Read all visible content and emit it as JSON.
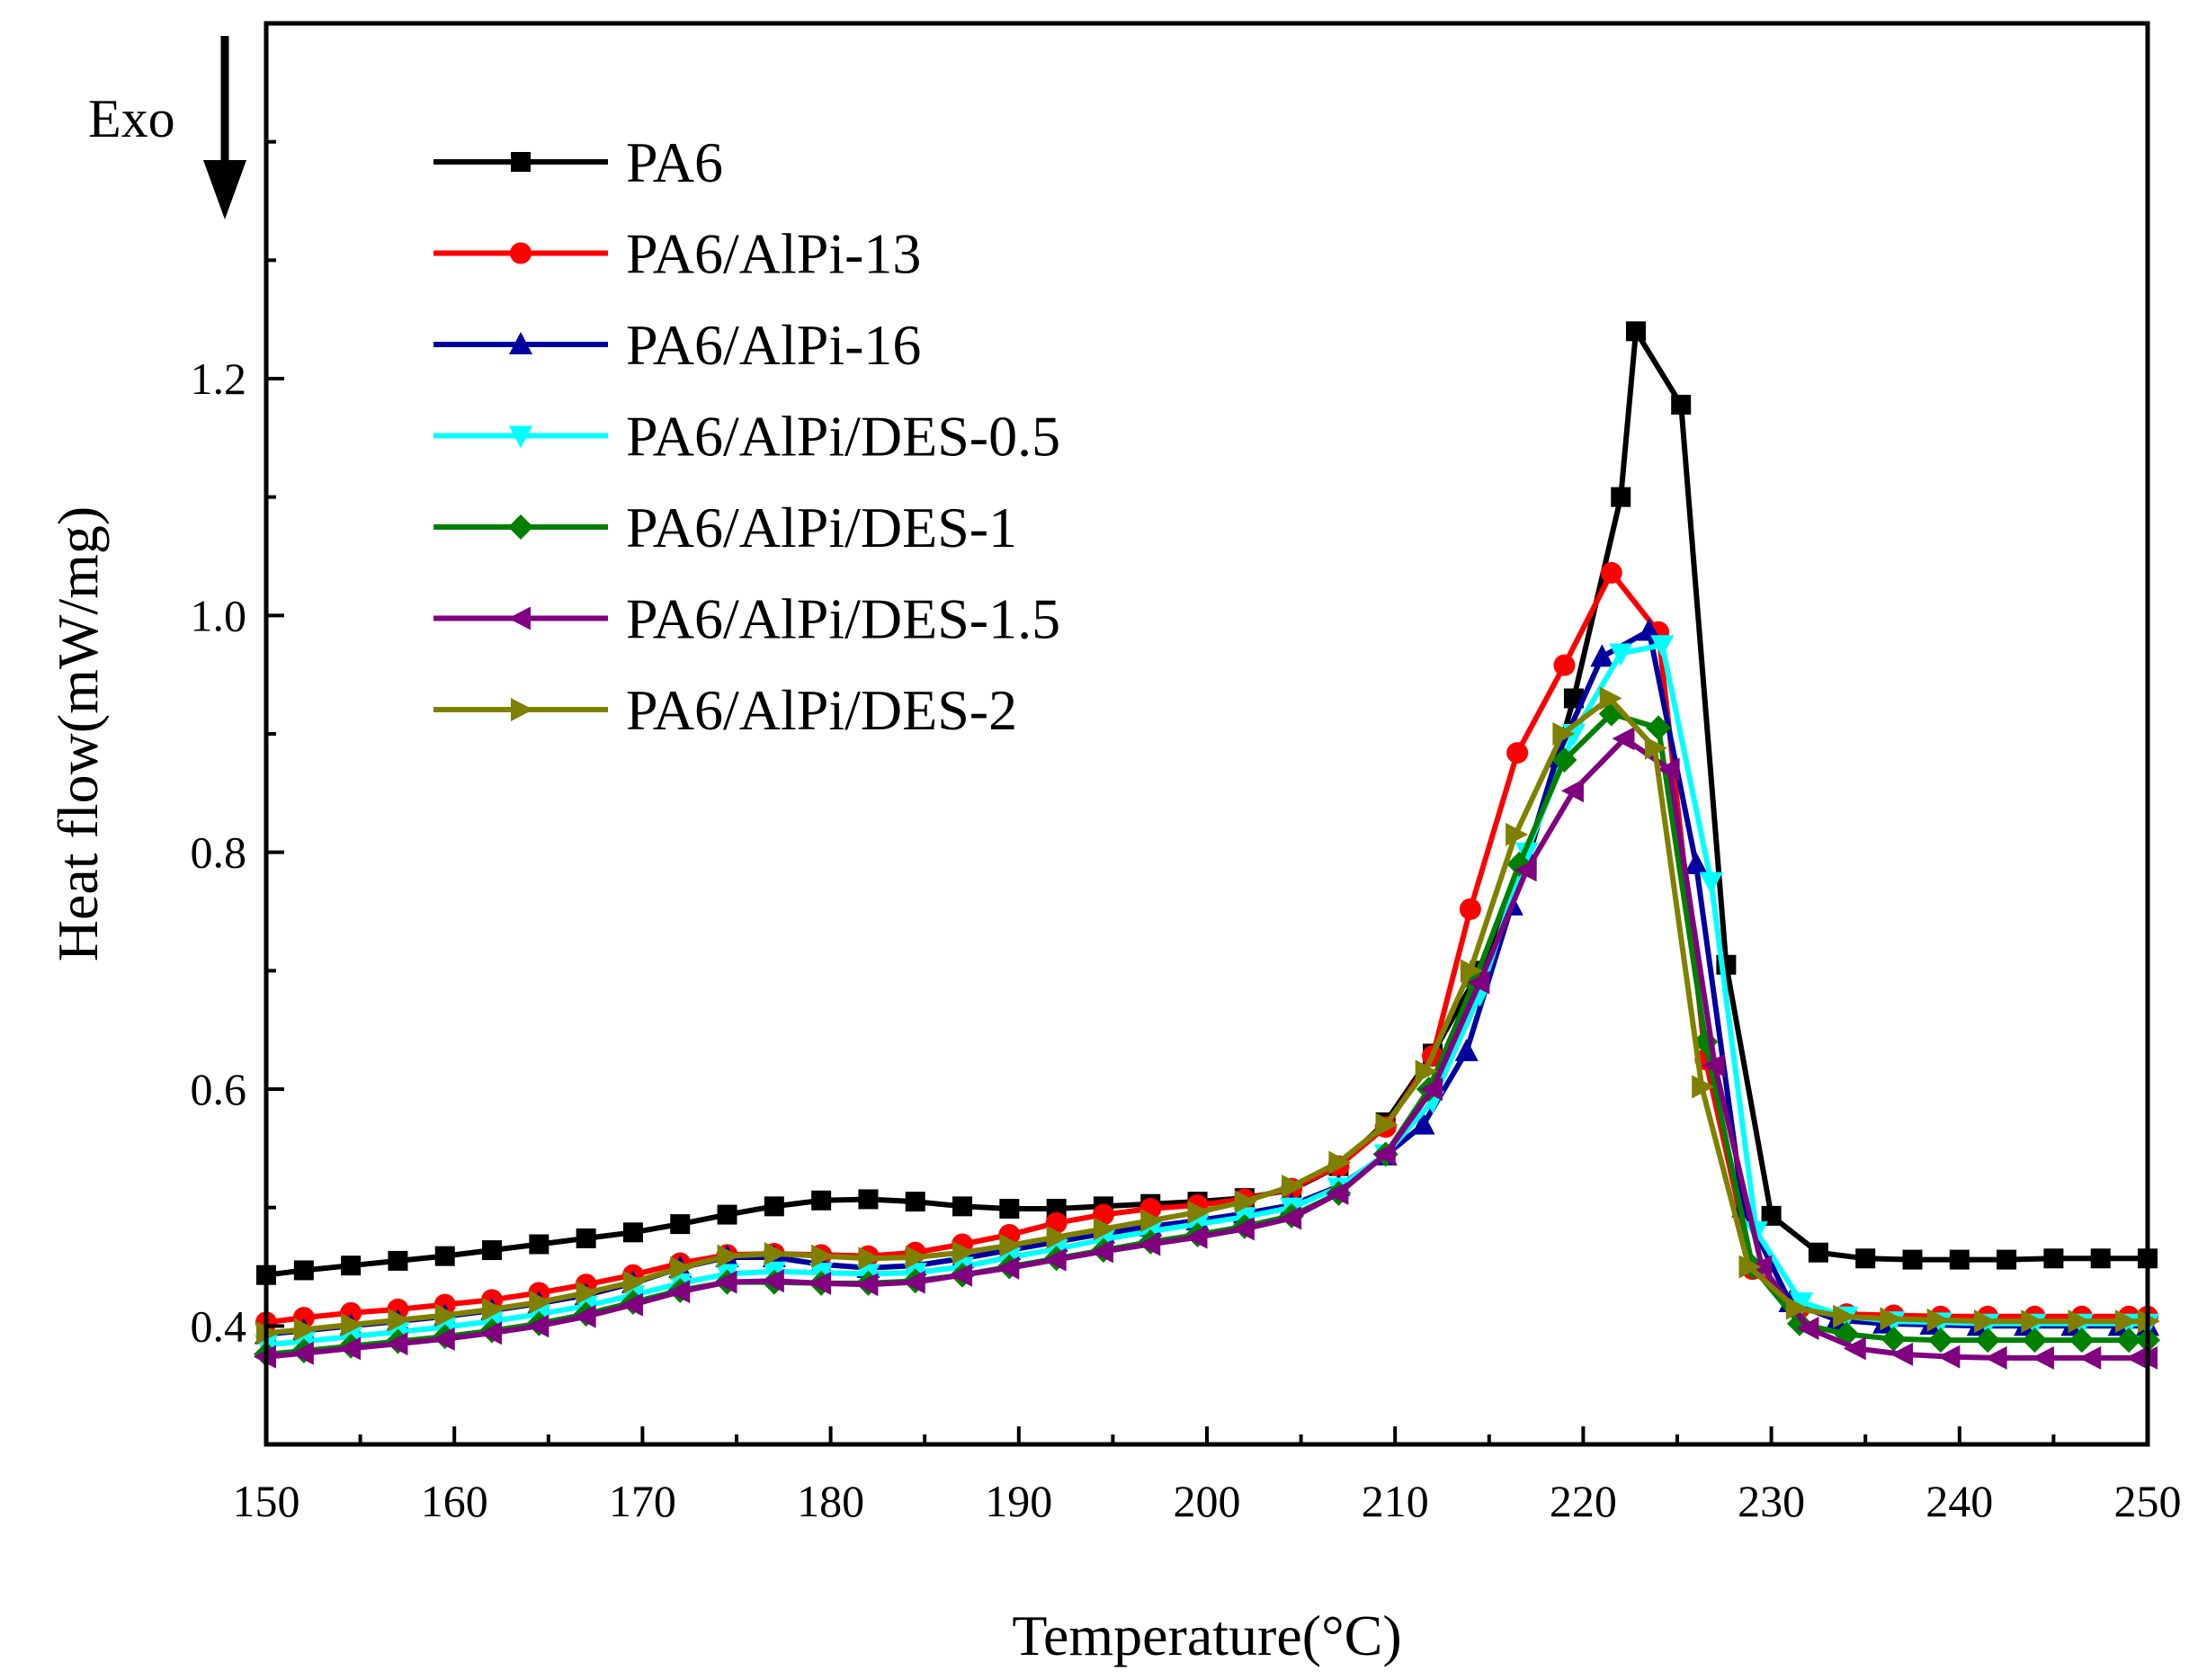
{
  "chart_data": {
    "type": "line",
    "title": "",
    "xlabel": "Temperature(°C)",
    "ylabel": "Heat flow(mW/mg)",
    "xlim": [
      150,
      250
    ],
    "ylim": [
      0.3,
      1.5
    ],
    "xticks": [
      150,
      160,
      170,
      180,
      190,
      200,
      210,
      220,
      230,
      240,
      250
    ],
    "yticks": [
      0.4,
      0.6,
      0.8,
      1.0,
      1.2
    ],
    "ytick_labels": [
      "0.4",
      "0.6",
      "0.8",
      "1.0",
      "1.2"
    ],
    "annotation": "Exo",
    "legend_position": "top-left",
    "x": [
      150.0,
      152.0,
      154.5,
      157.0,
      159.5,
      162.0,
      164.5,
      167.0,
      169.5,
      172.0,
      174.5,
      177.0,
      179.5,
      182.0,
      184.5,
      187.0,
      189.5,
      192.0,
      194.5,
      197.0,
      199.5,
      202.0,
      204.5,
      207.0,
      209.5,
      212.0,
      214.5,
      217.0,
      219.5,
      222.0,
      224.5,
      227.0,
      229.5,
      232.0,
      234.5,
      237.0,
      239.5,
      242.0,
      244.5,
      247.0,
      249.5
    ],
    "series": [
      {
        "name": "PA6",
        "color": "#000000",
        "marker": "square",
        "x": [
          150.0,
          152.0,
          154.5,
          157.0,
          159.5,
          162.0,
          164.5,
          167.0,
          169.5,
          172.0,
          174.5,
          177.0,
          179.5,
          182.0,
          184.5,
          187.0,
          189.5,
          192.0,
          194.5,
          197.0,
          199.5,
          202.0,
          204.5,
          207.0,
          209.5,
          212.0,
          214.5,
          217.0,
          219.5,
          222.0,
          222.8,
          225.2,
          227.6,
          230.0,
          232.5,
          235.0,
          237.5,
          240.0,
          242.5,
          245.0,
          247.5,
          250.0
        ],
        "values": [
          0.443,
          0.447,
          0.451,
          0.455,
          0.459,
          0.464,
          0.469,
          0.474,
          0.479,
          0.486,
          0.494,
          0.501,
          0.506,
          0.507,
          0.505,
          0.501,
          0.499,
          0.499,
          0.501,
          0.503,
          0.505,
          0.508,
          0.515,
          0.535,
          0.572,
          0.63,
          0.7,
          0.79,
          0.93,
          1.1,
          1.24,
          1.178,
          0.705,
          0.493,
          0.462,
          0.457,
          0.456,
          0.456,
          0.456,
          0.457,
          0.457,
          0.457
        ]
      },
      {
        "name": "PA6/AlPi-13",
        "color": "#ff0000",
        "marker": "circle",
        "x": [
          150.0,
          152.0,
          154.5,
          157.0,
          159.5,
          162.0,
          164.5,
          167.0,
          169.5,
          172.0,
          174.5,
          177.0,
          179.5,
          182.0,
          184.5,
          187.0,
          189.5,
          192.0,
          194.5,
          197.0,
          199.5,
          202.0,
          204.5,
          207.0,
          209.5,
          212.0,
          214.0,
          216.5,
          219.0,
          221.5,
          224.0,
          226.5,
          229.0,
          231.5,
          234.0,
          236.5,
          239.0,
          241.5,
          244.0,
          246.5,
          249.0,
          250.0
        ],
        "values": [
          0.403,
          0.407,
          0.411,
          0.414,
          0.418,
          0.422,
          0.428,
          0.435,
          0.443,
          0.453,
          0.46,
          0.461,
          0.46,
          0.459,
          0.462,
          0.469,
          0.477,
          0.487,
          0.494,
          0.499,
          0.502,
          0.507,
          0.516,
          0.535,
          0.568,
          0.628,
          0.752,
          0.884,
          0.958,
          1.036,
          0.986,
          0.625,
          0.448,
          0.415,
          0.41,
          0.409,
          0.408,
          0.408,
          0.408,
          0.408,
          0.408,
          0.408
        ]
      },
      {
        "name": "PA6/AlPi-16",
        "color": "#0000a0",
        "marker": "triangle-up",
        "x": [
          150.0,
          152.0,
          154.5,
          157.0,
          159.5,
          162.0,
          164.5,
          167.0,
          169.5,
          172.0,
          174.5,
          177.0,
          179.5,
          182.0,
          184.5,
          187.0,
          189.5,
          192.0,
          194.5,
          197.0,
          199.5,
          202.0,
          204.5,
          207.0,
          209.5,
          211.5,
          213.8,
          216.2,
          218.6,
          221.0,
          223.5,
          226.0,
          228.5,
          231.0,
          233.5,
          236.0,
          238.5,
          241.0,
          243.5,
          246.0,
          248.5,
          250.0
        ],
        "values": [
          0.393,
          0.396,
          0.4,
          0.404,
          0.408,
          0.413,
          0.419,
          0.426,
          0.436,
          0.449,
          0.458,
          0.458,
          0.452,
          0.449,
          0.451,
          0.457,
          0.464,
          0.471,
          0.478,
          0.484,
          0.489,
          0.495,
          0.502,
          0.518,
          0.544,
          0.57,
          0.632,
          0.755,
          0.88,
          0.965,
          0.987,
          0.79,
          0.5,
          0.42,
          0.405,
          0.402,
          0.401,
          0.4,
          0.4,
          0.4,
          0.4,
          0.4
        ]
      },
      {
        "name": "PA6/AlPi/DES-0.5",
        "color": "#00ffff",
        "marker": "triangle-down",
        "x": [
          150.0,
          152.0,
          154.5,
          157.0,
          159.5,
          162.0,
          164.5,
          167.0,
          169.5,
          172.0,
          174.5,
          177.0,
          179.5,
          182.0,
          184.5,
          187.0,
          189.5,
          192.0,
          194.5,
          197.0,
          199.5,
          202.0,
          204.5,
          207.0,
          209.5,
          212.0,
          214.5,
          217.0,
          219.5,
          222.0,
          224.2,
          226.8,
          229.2,
          231.6,
          234.0,
          236.5,
          239.0,
          241.5,
          244.0,
          246.5,
          249.0,
          250.0
        ],
        "values": [
          0.384,
          0.387,
          0.391,
          0.395,
          0.399,
          0.404,
          0.41,
          0.417,
          0.426,
          0.436,
          0.444,
          0.446,
          0.445,
          0.444,
          0.445,
          0.45,
          0.458,
          0.465,
          0.473,
          0.48,
          0.486,
          0.492,
          0.5,
          0.517,
          0.545,
          0.59,
          0.68,
          0.8,
          0.9,
          0.968,
          0.975,
          0.775,
          0.48,
          0.42,
          0.408,
          0.404,
          0.403,
          0.402,
          0.402,
          0.402,
          0.402,
          0.402
        ]
      },
      {
        "name": "PA6/AlPi/DES-1",
        "color": "#008000",
        "marker": "diamond",
        "x": [
          150.0,
          152.0,
          154.5,
          157.0,
          159.5,
          162.0,
          164.5,
          167.0,
          169.5,
          172.0,
          174.5,
          177.0,
          179.5,
          182.0,
          184.5,
          187.0,
          189.5,
          192.0,
          194.5,
          197.0,
          199.5,
          202.0,
          204.5,
          207.0,
          209.5,
          211.8,
          214.2,
          216.6,
          219.0,
          221.5,
          224.0,
          226.5,
          229.0,
          231.5,
          234.0,
          236.5,
          239.0,
          241.5,
          244.0,
          246.5,
          249.0,
          250.0
        ],
        "values": [
          0.376,
          0.379,
          0.383,
          0.387,
          0.391,
          0.396,
          0.402,
          0.41,
          0.42,
          0.43,
          0.437,
          0.437,
          0.436,
          0.436,
          0.438,
          0.443,
          0.45,
          0.457,
          0.464,
          0.471,
          0.477,
          0.484,
          0.493,
          0.512,
          0.545,
          0.6,
          0.69,
          0.79,
          0.878,
          0.917,
          0.905,
          0.64,
          0.45,
          0.402,
          0.393,
          0.389,
          0.388,
          0.388,
          0.388,
          0.388,
          0.388,
          0.388
        ]
      },
      {
        "name": "PA6/AlPi/DES-1.5",
        "color": "#800080",
        "marker": "triangle-left",
        "x": [
          150.0,
          152.0,
          154.5,
          157.0,
          159.5,
          162.0,
          164.5,
          167.0,
          169.5,
          172.0,
          174.5,
          177.0,
          179.5,
          182.0,
          184.5,
          187.0,
          189.5,
          192.0,
          194.5,
          197.0,
          199.5,
          202.0,
          204.5,
          207.0,
          209.5,
          212.0,
          214.5,
          217.0,
          219.5,
          222.2,
          224.6,
          227.0,
          229.5,
          232.0,
          234.5,
          237.0,
          239.5,
          242.0,
          244.5,
          247.0,
          249.5,
          250.0
        ],
        "values": [
          0.374,
          0.377,
          0.381,
          0.385,
          0.389,
          0.394,
          0.4,
          0.408,
          0.418,
          0.429,
          0.437,
          0.438,
          0.436,
          0.435,
          0.437,
          0.443,
          0.449,
          0.456,
          0.463,
          0.469,
          0.475,
          0.482,
          0.491,
          0.512,
          0.545,
          0.6,
          0.69,
          0.785,
          0.852,
          0.896,
          0.87,
          0.62,
          0.45,
          0.398,
          0.381,
          0.376,
          0.374,
          0.373,
          0.373,
          0.373,
          0.373,
          0.373
        ]
      },
      {
        "name": "PA6/AlPi/DES-2",
        "color": "#808000",
        "marker": "triangle-right",
        "x": [
          150.0,
          152.0,
          154.5,
          157.0,
          159.5,
          162.0,
          164.5,
          167.0,
          169.5,
          172.0,
          174.5,
          177.0,
          179.5,
          182.0,
          184.5,
          187.0,
          189.5,
          192.0,
          194.5,
          197.0,
          199.5,
          202.0,
          204.5,
          207.0,
          209.5,
          211.6,
          214.0,
          216.4,
          218.9,
          221.4,
          223.8,
          226.3,
          228.8,
          231.3,
          233.8,
          236.3,
          238.8,
          241.3,
          243.8,
          246.3,
          248.8,
          250.0
        ],
        "values": [
          0.394,
          0.397,
          0.401,
          0.405,
          0.409,
          0.414,
          0.42,
          0.428,
          0.437,
          0.449,
          0.459,
          0.461,
          0.459,
          0.457,
          0.458,
          0.462,
          0.468,
          0.475,
          0.482,
          0.489,
          0.496,
          0.505,
          0.518,
          0.538,
          0.57,
          0.615,
          0.7,
          0.815,
          0.9,
          0.93,
          0.888,
          0.602,
          0.45,
          0.415,
          0.408,
          0.406,
          0.405,
          0.404,
          0.404,
          0.404,
          0.404,
          0.404
        ]
      }
    ]
  }
}
